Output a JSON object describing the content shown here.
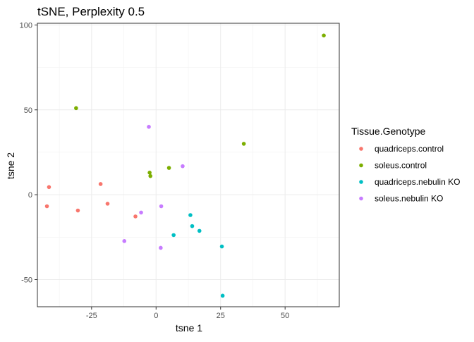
{
  "chart_data": {
    "type": "scatter",
    "title": "tSNE, Perplexity 0.5",
    "xlabel": "tsne 1",
    "ylabel": "tsne 2",
    "xlim": [
      -46,
      71
    ],
    "ylim": [
      -66,
      101
    ],
    "xticks": [
      -25,
      0,
      25,
      50
    ],
    "yticks": [
      -50,
      0,
      50,
      100
    ],
    "grid": true,
    "legend": {
      "title": "Tissue.Genotype",
      "placement": "right"
    },
    "series": [
      {
        "name": "quadriceps.control",
        "color": "#F8766D",
        "points": [
          {
            "x": -41.5,
            "y": 4.5
          },
          {
            "x": -42.3,
            "y": -6.8
          },
          {
            "x": -30.3,
            "y": -9.3
          },
          {
            "x": -21.5,
            "y": 6.3
          },
          {
            "x": -18.8,
            "y": -5.3
          },
          {
            "x": -8.0,
            "y": -12.8
          }
        ]
      },
      {
        "name": "soleus.control",
        "color": "#7CAE00",
        "points": [
          {
            "x": -31.0,
            "y": 51.0
          },
          {
            "x": -2.5,
            "y": 13.0
          },
          {
            "x": -2.2,
            "y": 11.0
          },
          {
            "x": 5.0,
            "y": 15.8
          },
          {
            "x": 34.0,
            "y": 30.0
          },
          {
            "x": 65.0,
            "y": 93.8
          }
        ]
      },
      {
        "name": "quadriceps.nebulin KO",
        "color": "#00BFC4",
        "points": [
          {
            "x": 13.3,
            "y": -12.0
          },
          {
            "x": 14.0,
            "y": -18.5
          },
          {
            "x": 6.8,
            "y": -23.8
          },
          {
            "x": 16.8,
            "y": -21.3
          },
          {
            "x": 25.5,
            "y": -30.5
          },
          {
            "x": 25.8,
            "y": -59.5
          }
        ]
      },
      {
        "name": "soleus.nebulin KO",
        "color": "#C77CFF",
        "points": [
          {
            "x": -2.8,
            "y": 40.0
          },
          {
            "x": 10.3,
            "y": 16.8
          },
          {
            "x": 2.0,
            "y": -6.8
          },
          {
            "x": -5.8,
            "y": -10.5
          },
          {
            "x": -12.3,
            "y": -27.3
          },
          {
            "x": 1.8,
            "y": -31.3
          }
        ]
      }
    ]
  }
}
